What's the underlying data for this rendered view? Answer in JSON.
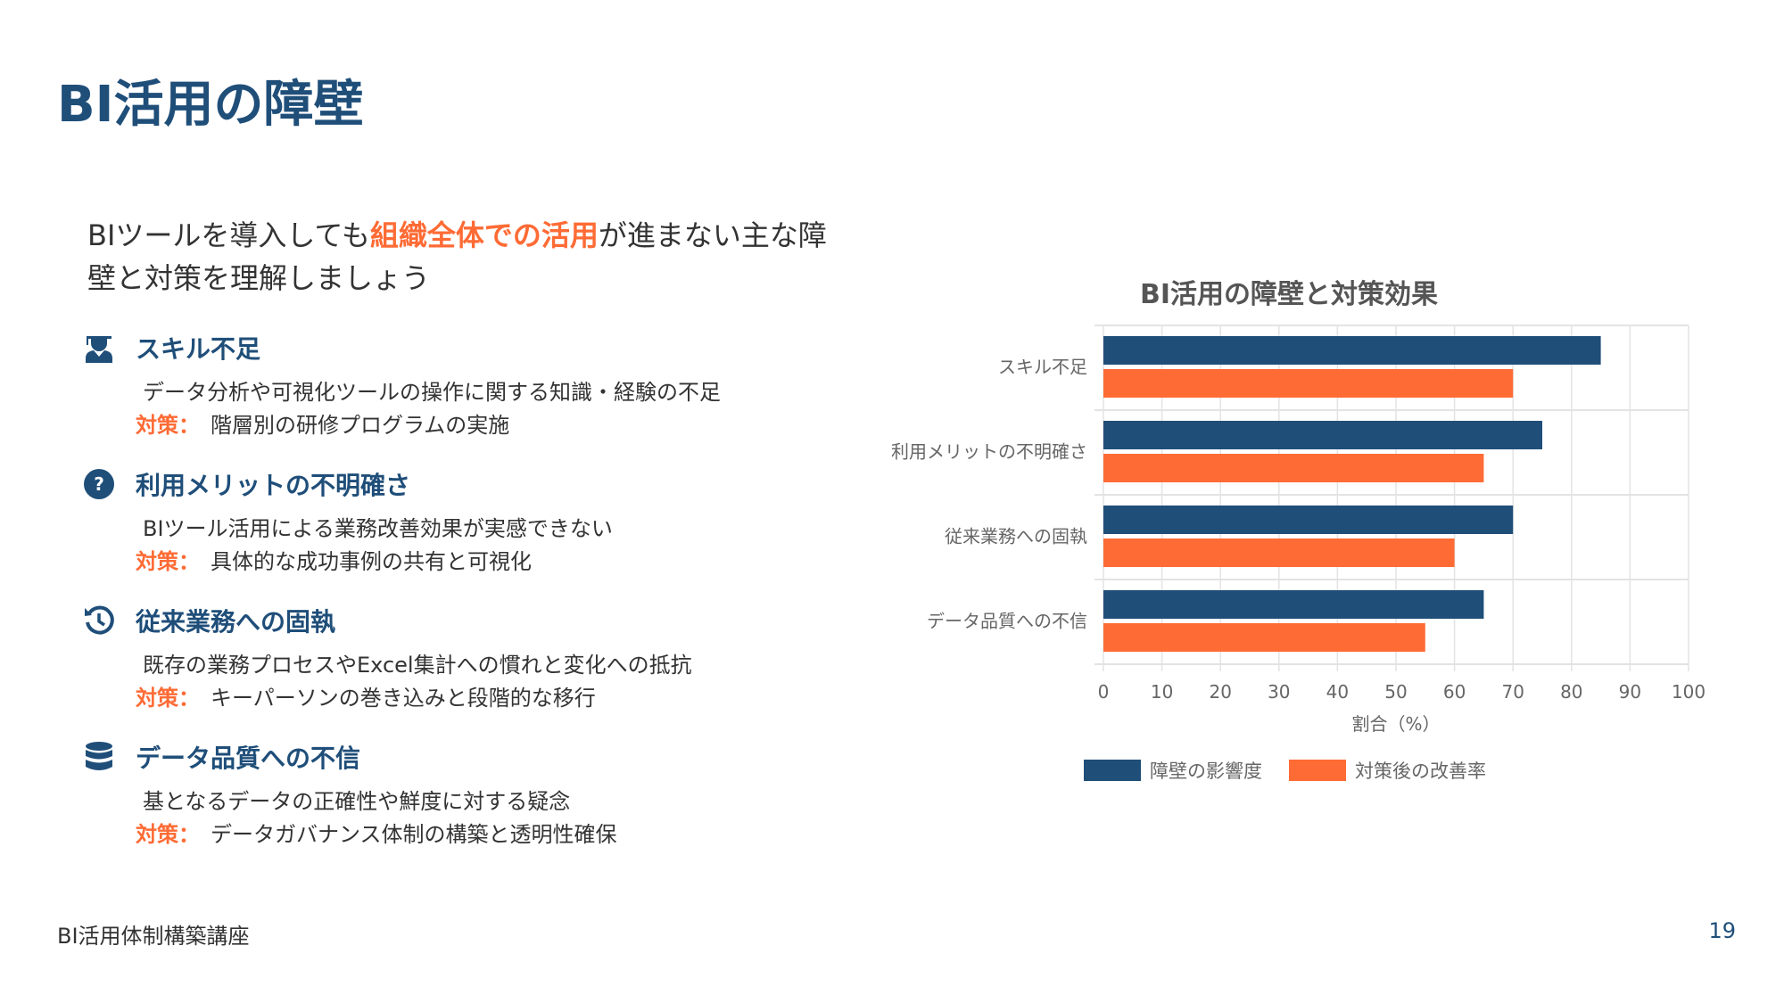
{
  "header": {
    "title": "BI活用の障壁"
  },
  "subtitle": {
    "pre": "BIツールを導入しても",
    "highlight": "組織全体での活用",
    "post": "が進まない主な障壁と対策を理解しましょう"
  },
  "countermeasure_label": "対策：",
  "items": [
    {
      "icon": "graduate-icon",
      "title": "スキル不足",
      "desc": "データ分析や可視化ツールの操作に関する知識・経験の不足",
      "countermeasure": "階層別の研修プログラムの実施"
    },
    {
      "icon": "question-circle-icon",
      "title": "利用メリットの不明確さ",
      "desc": "BIツール活用による業務改善効果が実感できない",
      "countermeasure": "具体的な成功事例の共有と可視化"
    },
    {
      "icon": "history-icon",
      "title": "従来業務への固執",
      "desc": "既存の業務プロセスやExcel集計への慣れと変化への抵抗",
      "countermeasure": "キーパーソンの巻き込みと段階的な移行"
    },
    {
      "icon": "database-icon",
      "title": "データ品質への不信",
      "desc": "基となるデータの正確性や鮮度に対する疑念",
      "countermeasure": "データガバナンス体制の構築と透明性確保"
    }
  ],
  "footer": {
    "course": "BI活用体制構築講座",
    "page": "19"
  },
  "colors": {
    "primary": "#1f4e79",
    "accent": "#ff6b35"
  },
  "chart_data": {
    "type": "bar",
    "orientation": "horizontal",
    "title": "BI活用の障壁と対策効果",
    "categories": [
      "スキル不足",
      "利用メリットの不明確さ",
      "従来業務への固執",
      "データ品質への不信"
    ],
    "series": [
      {
        "name": "障壁の影響度",
        "color": "#1f4e79",
        "values": [
          85,
          75,
          70,
          65
        ]
      },
      {
        "name": "対策後の改善率",
        "color": "#ff6b35",
        "values": [
          70,
          65,
          60,
          55
        ]
      }
    ],
    "xlabel": "割合（%）",
    "ylabel": "",
    "xlim": [
      0,
      100
    ],
    "xticks": [
      0,
      10,
      20,
      30,
      40,
      50,
      60,
      70,
      80,
      90,
      100
    ],
    "grid": true,
    "legend": "bottom"
  }
}
